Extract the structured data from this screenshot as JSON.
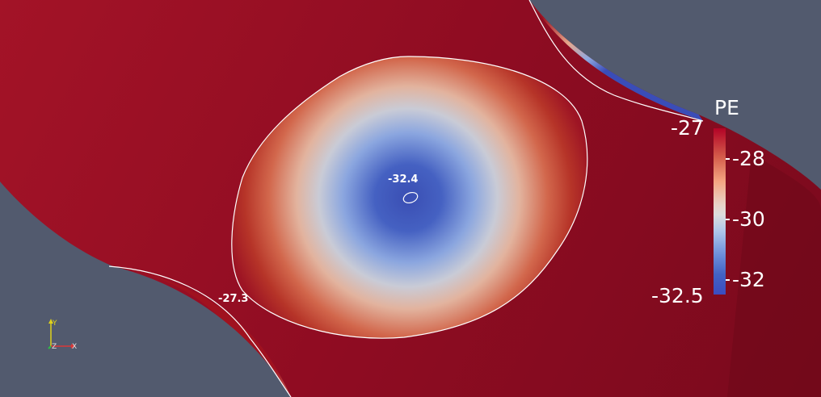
{
  "legend": {
    "title": "PE",
    "min_label": "-32.5",
    "max_label": "-27",
    "ticks": [
      "-28",
      "-30",
      "-32"
    ],
    "range": [
      -32.5,
      -27
    ],
    "colormap": [
      "#3b4cc0",
      "#dddddd",
      "#b40426"
    ]
  },
  "contours": {
    "center_label": "-32.4",
    "outer_label": "-27.3"
  },
  "axes": {
    "x": "X",
    "y": "Y",
    "z": "Z",
    "colors": {
      "x": "#d93838",
      "y": "#e0d21a",
      "z": "#2fbf45"
    }
  },
  "colors": {
    "background": "#525a6e",
    "surface": "#8e0a22"
  }
}
